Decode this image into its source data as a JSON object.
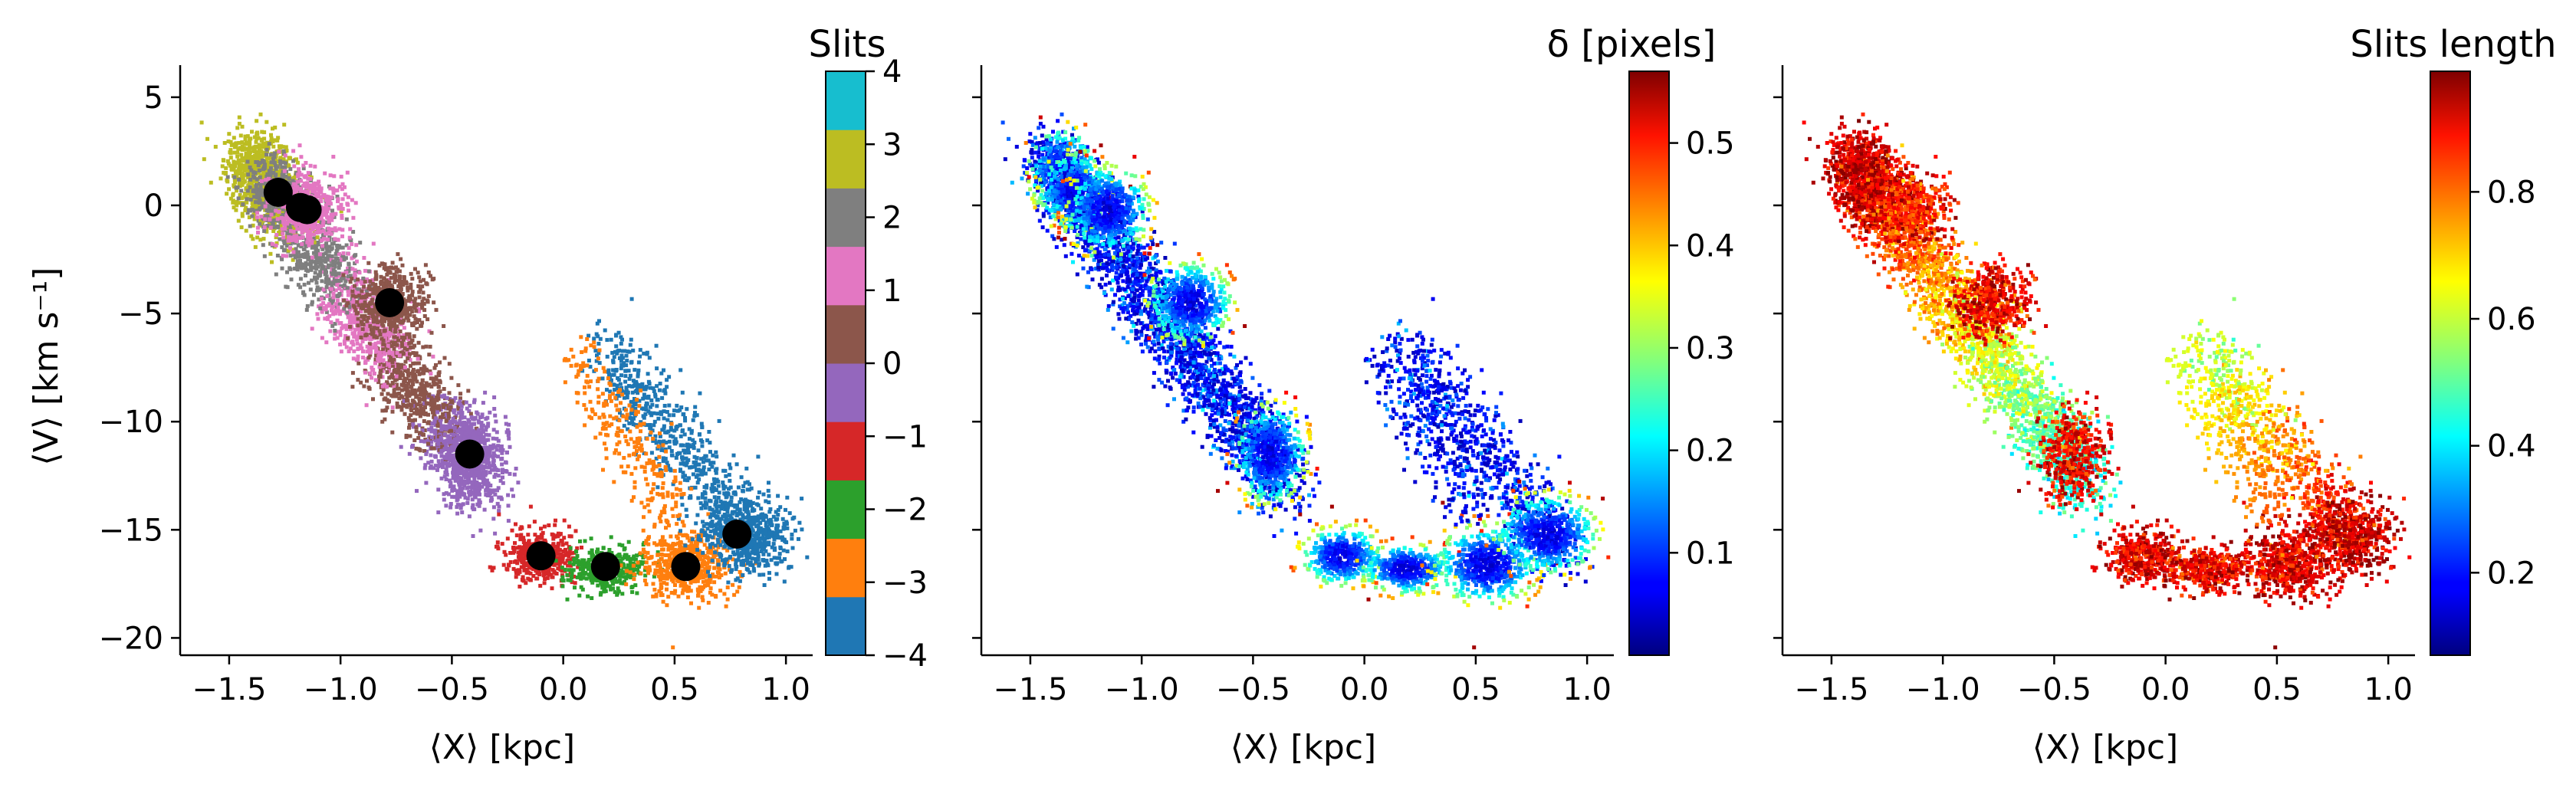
{
  "chart_data": [
    {
      "type": "scatter",
      "panel": "slits",
      "xlabel": "⟨X⟩ [kpc]",
      "ylabel": "⟨V⟩ [km s⁻¹]",
      "xlim": [
        -1.72,
        1.12
      ],
      "ylim": [
        -20.8,
        6.2
      ],
      "xticks": [
        -1.5,
        -1.0,
        -0.5,
        0.0,
        0.5,
        1.0
      ],
      "xtick_labels": [
        "−1.5",
        "−1.0",
        "−0.5",
        "0.0",
        "0.5",
        "1.0"
      ],
      "yticks": [
        5,
        0,
        -5,
        -10,
        -15,
        -20
      ],
      "ytick_labels": [
        "5",
        "0",
        "−5",
        "−10",
        "−15",
        "−20"
      ],
      "colorbar": {
        "title": "Slits",
        "ticks": [
          4,
          3,
          2,
          1,
          0,
          -1,
          -2,
          -3,
          -4
        ],
        "tick_labels": [
          "4",
          "3",
          "2",
          "1",
          "0",
          "−1",
          "−2",
          "−3",
          "−4"
        ],
        "colors": [
          "#1f77b4",
          "#ff7f0e",
          "#2ca02c",
          "#d62728",
          "#9467bd",
          "#8c564b",
          "#e377c2",
          "#7f7f7f",
          "#bcbd22",
          "#17becf"
        ]
      },
      "clusters": [
        {
          "slit": 4,
          "x": -1.3,
          "y": 1.0
        },
        {
          "slit": 3,
          "x": -1.3,
          "y": 0.5
        },
        {
          "slit": 2,
          "x": -1.17,
          "y": -0.1
        },
        {
          "slit": 1,
          "x": -0.77,
          "y": -4.5
        },
        {
          "slit": 0,
          "x": -0.41,
          "y": -11.5
        },
        {
          "slit": -1,
          "x": -0.1,
          "y": -16.2
        },
        {
          "slit": -2,
          "x": 0.19,
          "y": -16.7
        },
        {
          "slit": -3,
          "x": 0.55,
          "y": -16.6
        },
        {
          "slit": -4,
          "x": 0.78,
          "y": -15.2
        }
      ],
      "centroids": [
        {
          "x": -1.28,
          "y": 0.6
        },
        {
          "x": -1.18,
          "y": -0.1
        },
        {
          "x": -1.15,
          "y": -0.2
        },
        {
          "x": -0.78,
          "y": -4.5
        },
        {
          "x": -0.42,
          "y": -11.5
        },
        {
          "x": -0.1,
          "y": -16.2
        },
        {
          "x": 0.19,
          "y": -16.7
        },
        {
          "x": 0.55,
          "y": -16.7
        },
        {
          "x": 0.78,
          "y": -15.2
        }
      ]
    },
    {
      "type": "scatter",
      "panel": "delta",
      "xlabel": "⟨X⟩ [kpc]",
      "xlim": [
        -1.72,
        1.12
      ],
      "ylim": [
        -20.8,
        6.2
      ],
      "xticks": [
        -1.5,
        -1.0,
        -0.5,
        0.0,
        0.5,
        1.0
      ],
      "xtick_labels": [
        "−1.5",
        "−1.0",
        "−0.5",
        "0.0",
        "0.5",
        "1.0"
      ],
      "yticks": [
        5,
        0,
        -5,
        -10,
        -15,
        -20
      ],
      "colorbar": {
        "title": "δ [pixels]",
        "range": [
          0.0,
          0.57
        ],
        "ticks": [
          0.5,
          0.4,
          0.3,
          0.2,
          0.1
        ],
        "tick_labels": [
          "0.5",
          "0.4",
          "0.3",
          "0.2",
          "0.1"
        ],
        "colormap": "jet"
      }
    },
    {
      "type": "scatter",
      "panel": "slits-length",
      "xlabel": "⟨X⟩ [kpc]",
      "xlim": [
        -1.72,
        1.12
      ],
      "ylim": [
        -20.8,
        6.2
      ],
      "xticks": [
        -1.5,
        -1.0,
        -0.5,
        0.0,
        0.5,
        1.0
      ],
      "xtick_labels": [
        "−1.5",
        "−1.0",
        "−0.5",
        "0.0",
        "0.5",
        "1.0"
      ],
      "yticks": [
        5,
        0,
        -5,
        -10,
        -15,
        -20
      ],
      "colorbar": {
        "title": "Slits length",
        "range": [
          0.07,
          0.99
        ],
        "ticks": [
          0.8,
          0.6,
          0.4,
          0.2
        ],
        "tick_labels": [
          "0.8",
          "0.6",
          "0.4",
          "0.2"
        ],
        "colormap": "jet"
      }
    }
  ]
}
